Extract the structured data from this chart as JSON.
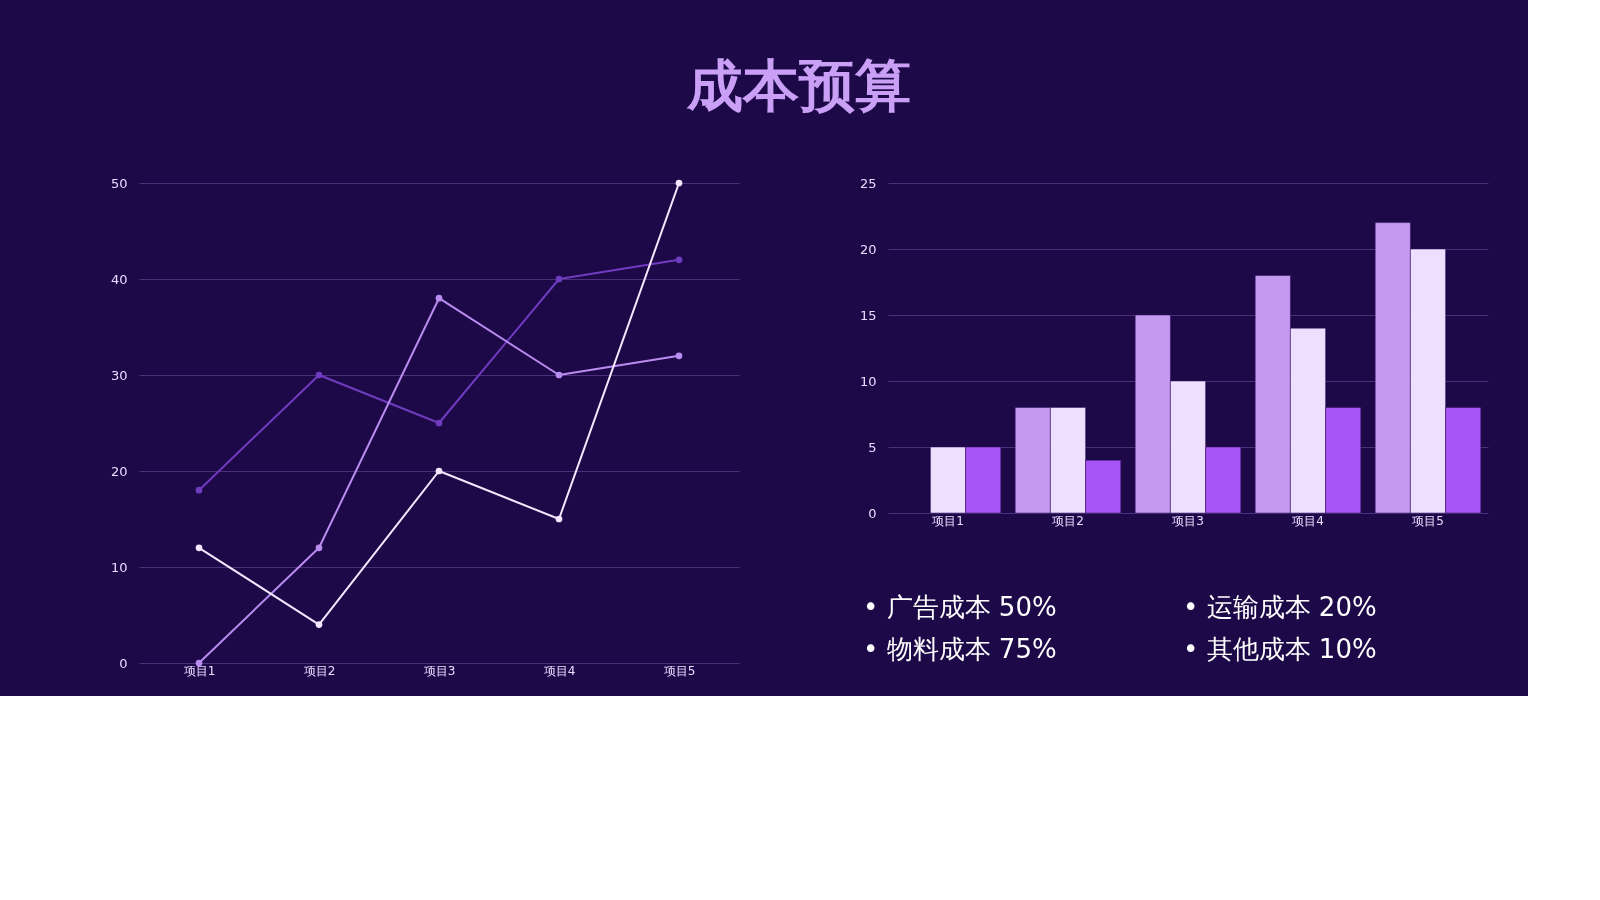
{
  "chart_data": [
    {
      "type": "line",
      "title": "成本预算",
      "categories": [
        "项目1",
        "项目2",
        "项目3",
        "项目4",
        "项目5"
      ],
      "ylim": [
        0,
        50
      ],
      "yticks": [
        0,
        10,
        20,
        30,
        40,
        50
      ],
      "grid": "y",
      "marker": "circle",
      "series": [
        {
          "color": "#6f3cc0",
          "values": [
            18,
            30,
            25,
            40,
            42
          ]
        },
        {
          "color": "#b98cf0",
          "values": [
            0,
            12,
            38,
            30,
            32
          ]
        },
        {
          "color": "#f3e8ff",
          "values": [
            12,
            4,
            20,
            15,
            50
          ]
        }
      ]
    },
    {
      "type": "bar",
      "categories": [
        "项目1",
        "项目2",
        "项目3",
        "项目4",
        "项目5"
      ],
      "ylim": [
        0,
        25
      ],
      "yticks": [
        0,
        5,
        10,
        15,
        20,
        25
      ],
      "grid": "y",
      "series": [
        {
          "color": "#c39af0",
          "values": [
            null,
            8,
            15,
            18,
            22
          ]
        },
        {
          "color": "#efdfff",
          "values": [
            5,
            8,
            10,
            14,
            20
          ]
        },
        {
          "color": "#a855f7",
          "values": [
            5,
            4,
            5,
            8,
            8
          ]
        }
      ],
      "annotations": [
        "• 广告成本 50%",
        "• 运输成本 20%",
        "• 物料成本 75%",
        "• 其他成本 10%"
      ]
    }
  ]
}
